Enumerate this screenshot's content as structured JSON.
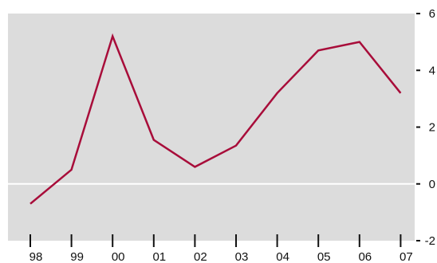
{
  "chart_data": {
    "type": "line",
    "title": "",
    "xlabel": "",
    "ylabel": "",
    "categories": [
      "98",
      "99",
      "00",
      "01",
      "02",
      "03",
      "04",
      "05",
      "06",
      "07"
    ],
    "series": [
      {
        "values": [
          -0.7,
          0.5,
          5.2,
          1.55,
          0.6,
          1.35,
          3.2,
          4.7,
          5.0,
          3.2
        ]
      }
    ],
    "ylim": [
      -2,
      6
    ],
    "yticks": [
      -2,
      0,
      2,
      4,
      6
    ],
    "ytick_labels": [
      "-2",
      "0",
      "2",
      "4",
      "6"
    ],
    "grid": false,
    "zero_line": true,
    "y_axis_position": "right",
    "colors": {
      "line": "#a80d3a",
      "plot_background": "#dcdcdc",
      "zero_line": "#ffffff",
      "ticks": "#111111"
    }
  }
}
